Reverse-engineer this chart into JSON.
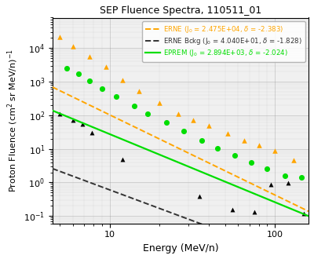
{
  "title": "SEP Fluence Spectra, 110511_01",
  "xlabel": "Energy (MeV/n)",
  "ylabel": "Proton Fluence (cm$^2$ sr MeV/n)$^{-1}$",
  "xlim": [
    4.5,
    160.0
  ],
  "ylim": [
    0.06,
    80000.0
  ],
  "erne_J0": 24750.0,
  "erne_delta": -2.383,
  "erne_color": "#FFA500",
  "erne_label": "ERNE (J$_0$ = 2.475E+04, $\\delta$ = -2.383)",
  "bckg_J0": 40.4,
  "bckg_delta": -1.828,
  "bckg_color": "#333333",
  "bckg_label": "ERNE Bckg (J$_0$ = 4.040E+01, $\\delta$ = -1.828)",
  "eprem_J0": 2894.0,
  "eprem_delta": -2.024,
  "eprem_color": "#00DD00",
  "eprem_label": "EPREM (J$_0$ = 2.894E+03, $\\delta$ = -2.024)",
  "erne_data_x": [
    5.0,
    6.0,
    7.5,
    9.5,
    12.0,
    15.0,
    20.0,
    26.0,
    32.0,
    40.0,
    52.0,
    65.0,
    80.0,
    100.0,
    130.0
  ],
  "erne_data_y": [
    22000,
    11000,
    5500,
    2800,
    1100,
    520,
    240,
    110,
    70,
    48,
    28,
    18,
    13,
    9,
    4.5
  ],
  "bckg_data_x": [
    5.0,
    6.0,
    6.8,
    7.8,
    12.0,
    35.0,
    55.0,
    75.0,
    95.0,
    120.0,
    150.0
  ],
  "bckg_data_y": [
    110,
    70,
    55,
    30,
    5.0,
    0.38,
    0.16,
    0.13,
    0.85,
    0.95,
    0.12
  ],
  "eprem_data_x": [
    5.5,
    6.5,
    7.5,
    9.0,
    11.0,
    14.0,
    17.0,
    22.0,
    28.0,
    36.0,
    45.0,
    57.0,
    72.0,
    90.0,
    115.0,
    145.0
  ],
  "eprem_data_y": [
    2500,
    1700,
    1050,
    620,
    360,
    185,
    110,
    60,
    34,
    18,
    10.5,
    6.5,
    4.0,
    2.6,
    1.6,
    1.4
  ],
  "background_color": "#f0f0f0",
  "fig_bg": "#ffffff"
}
